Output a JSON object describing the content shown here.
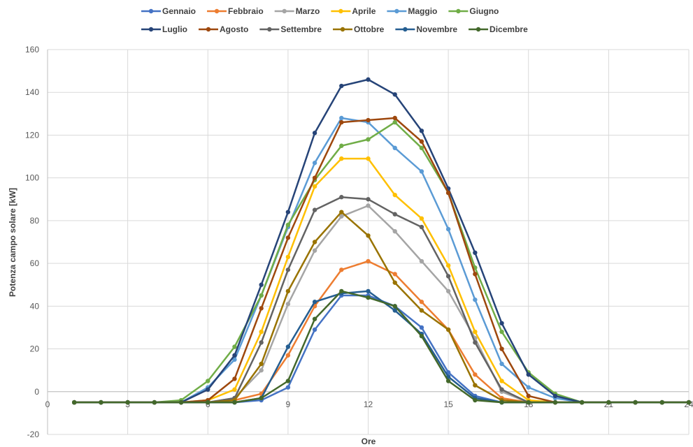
{
  "chart_data": {
    "type": "line",
    "title": "",
    "xlabel": "Ore",
    "ylabel": "Potenza campo solare [kW]",
    "xlim": [
      0,
      24
    ],
    "ylim": [
      -20,
      160
    ],
    "xticks": [
      0,
      3,
      6,
      9,
      12,
      15,
      18,
      21,
      24
    ],
    "yticks": [
      -20,
      0,
      20,
      40,
      60,
      80,
      100,
      120,
      140,
      160
    ],
    "grid": "vertical and horizontal",
    "legend_position": "top",
    "x": [
      1,
      2,
      3,
      4,
      5,
      6,
      7,
      8,
      9,
      10,
      11,
      12,
      13,
      14,
      15,
      16,
      17,
      18,
      19,
      20,
      21,
      22,
      23,
      24
    ],
    "series": [
      {
        "name": "Gennaio",
        "color": "#4472C4",
        "values": [
          -5,
          -5,
          -5,
          -5,
          -5,
          -5,
          -5,
          -4,
          2,
          29,
          45,
          45,
          40,
          30,
          9,
          -2,
          -5,
          -5,
          -5,
          -5,
          -5,
          -5,
          -5,
          -5
        ]
      },
      {
        "name": "Febbraio",
        "color": "#ED7D31",
        "values": [
          -5,
          -5,
          -5,
          -5,
          -5,
          -5,
          -4,
          -1,
          17,
          40,
          57,
          61,
          55,
          42,
          29,
          8,
          -3,
          -5,
          -5,
          -5,
          -5,
          -5,
          -5,
          -5
        ]
      },
      {
        "name": "Marzo",
        "color": "#A5A5A5",
        "values": [
          -5,
          -5,
          -5,
          -5,
          -5,
          -5,
          -3,
          10,
          41,
          66,
          82,
          87,
          75,
          61,
          47,
          25,
          0,
          -5,
          -5,
          -5,
          -5,
          -5,
          -5,
          -5
        ]
      },
      {
        "name": "Aprile",
        "color": "#FFC000",
        "values": [
          -5,
          -5,
          -5,
          -5,
          -5,
          -4,
          1,
          28,
          63,
          96,
          109,
          109,
          92,
          81,
          59,
          28,
          5,
          -4,
          -5,
          -5,
          -5,
          -5,
          -5,
          -5
        ]
      },
      {
        "name": "Maggio",
        "color": "#5B9BD5",
        "values": [
          -5,
          -5,
          -5,
          -5,
          -5,
          2,
          15,
          45,
          77,
          107,
          128,
          126,
          114,
          103,
          76,
          43,
          13,
          2,
          -3,
          -5,
          -5,
          -5,
          -5,
          -5
        ]
      },
      {
        "name": "Giugno",
        "color": "#70AD47",
        "values": [
          -5,
          -5,
          -5,
          -5,
          -4,
          5,
          21,
          45,
          78,
          99,
          115,
          118,
          126,
          114,
          93,
          58,
          28,
          9,
          -1,
          -5,
          -5,
          -5,
          -5,
          -5
        ]
      },
      {
        "name": "Luglio",
        "color": "#264478",
        "values": [
          -5,
          -5,
          -5,
          -5,
          -5,
          1,
          17,
          50,
          84,
          121,
          143,
          146,
          139,
          122,
          95,
          65,
          32,
          8,
          -2,
          -5,
          -5,
          -5,
          -5,
          -5
        ]
      },
      {
        "name": "Agosto",
        "color": "#9E480E",
        "values": [
          -5,
          -5,
          -5,
          -5,
          -5,
          -4,
          6,
          39,
          72,
          100,
          126,
          127,
          128,
          117,
          93,
          55,
          20,
          -2,
          -5,
          -5,
          -5,
          -5,
          -5,
          -5
        ]
      },
      {
        "name": "Settembre",
        "color": "#636363",
        "values": [
          -5,
          -5,
          -5,
          -5,
          -5,
          -5,
          -3,
          23,
          57,
          85,
          91,
          90,
          83,
          77,
          54,
          23,
          1,
          -5,
          -5,
          -5,
          -5,
          -5,
          -5,
          -5
        ]
      },
      {
        "name": "Ottobre",
        "color": "#997300",
        "values": [
          -5,
          -5,
          -5,
          -5,
          -5,
          -5,
          -4,
          13,
          47,
          70,
          84,
          73,
          51,
          38,
          29,
          3,
          -4,
          -5,
          -5,
          -5,
          -5,
          -5,
          -5,
          -5
        ]
      },
      {
        "name": "Novembre",
        "color": "#255E91",
        "values": [
          -5,
          -5,
          -5,
          -5,
          -5,
          -5,
          -5,
          -3,
          21,
          42,
          46,
          47,
          38,
          27,
          7,
          -3,
          -5,
          -5,
          -5,
          -5,
          -5,
          -5,
          -5,
          -5
        ]
      },
      {
        "name": "Dicembre",
        "color": "#43682B",
        "values": [
          -5,
          -5,
          -5,
          -5,
          -5,
          -5,
          -5,
          -3,
          5,
          34,
          47,
          44,
          40,
          26,
          5,
          -4,
          -5,
          -5,
          -5,
          -5,
          -5,
          -5,
          -5,
          -5
        ]
      }
    ]
  }
}
